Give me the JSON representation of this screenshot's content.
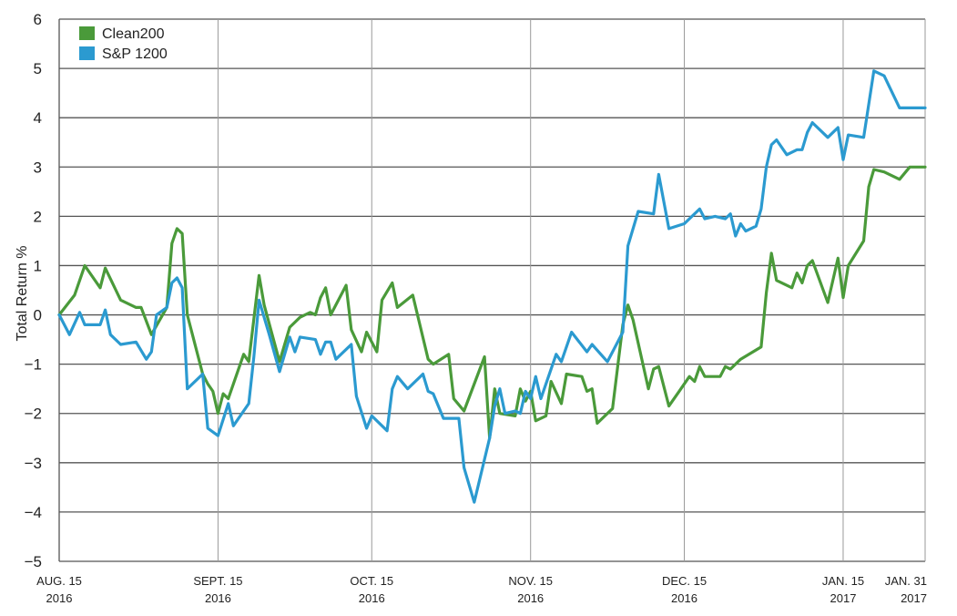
{
  "chart_data": {
    "type": "line",
    "title": "",
    "ylabel": "Total Return %",
    "xlabel": "",
    "ylim": [
      -5,
      6
    ],
    "yticks": [
      6,
      5,
      4,
      3,
      2,
      1,
      0,
      -1,
      -2,
      -3,
      -4,
      -5
    ],
    "xlim": [
      "2016-08-15",
      "2017-01-31"
    ],
    "xticks": [
      {
        "date": "2016-08-15",
        "line1": "AUG. 15",
        "line2": "2016"
      },
      {
        "date": "2016-09-15",
        "line1": "SEPT. 15",
        "line2": "2016"
      },
      {
        "date": "2016-10-15",
        "line1": "OCT. 15",
        "line2": "2016"
      },
      {
        "date": "2016-11-15",
        "line1": "NOV. 15",
        "line2": "2016"
      },
      {
        "date": "2016-12-15",
        "line1": "DEC. 15",
        "line2": "2016"
      },
      {
        "date": "2017-01-15",
        "line1": "JAN. 15",
        "line2": "2017"
      },
      {
        "date": "2017-01-31",
        "line1": "JAN. 31",
        "line2": "2017"
      }
    ],
    "grid": "horizontal and vertical",
    "legend_position": "top-left",
    "series": [
      {
        "name": "Clean200",
        "color": "#4a9a3a",
        "points": [
          [
            "2016-08-15",
            0
          ],
          [
            "2016-08-18",
            0.4
          ],
          [
            "2016-08-20",
            1
          ],
          [
            "2016-08-23",
            0.55
          ],
          [
            "2016-08-24",
            0.95
          ],
          [
            "2016-08-27",
            0.3
          ],
          [
            "2016-08-30",
            0.15
          ],
          [
            "2016-08-31",
            0.15
          ],
          [
            "2016-09-02",
            -0.4
          ],
          [
            "2016-09-05",
            0.15
          ],
          [
            "2016-09-06",
            1.45
          ],
          [
            "2016-09-07",
            1.75
          ],
          [
            "2016-09-08",
            1.65
          ],
          [
            "2016-09-09",
            0
          ],
          [
            "2016-09-12",
            -1.2
          ],
          [
            "2016-09-13",
            -1.4
          ],
          [
            "2016-09-14",
            -1.55
          ],
          [
            "2016-09-15",
            -2
          ],
          [
            "2016-09-16",
            -1.6
          ],
          [
            "2016-09-17",
            -1.7
          ],
          [
            "2016-09-20",
            -0.8
          ],
          [
            "2016-09-21",
            -0.95
          ],
          [
            "2016-09-23",
            0.8
          ],
          [
            "2016-09-24",
            0.2
          ],
          [
            "2016-09-27",
            -0.95
          ],
          [
            "2016-09-29",
            -0.25
          ],
          [
            "2016-10-01",
            -0.05
          ],
          [
            "2016-10-03",
            0.05
          ],
          [
            "2016-10-04",
            0
          ],
          [
            "2016-10-05",
            0.35
          ],
          [
            "2016-10-06",
            0.55
          ],
          [
            "2016-10-07",
            0
          ],
          [
            "2016-10-10",
            0.6
          ],
          [
            "2016-10-11",
            -0.3
          ],
          [
            "2016-10-13",
            -0.75
          ],
          [
            "2016-10-14",
            -0.35
          ],
          [
            "2016-10-16",
            -0.75
          ],
          [
            "2016-10-17",
            0.3
          ],
          [
            "2016-10-19",
            0.65
          ],
          [
            "2016-10-20",
            0.15
          ],
          [
            "2016-10-23",
            0.4
          ],
          [
            "2016-10-26",
            -0.9
          ],
          [
            "2016-10-27",
            -1
          ],
          [
            "2016-10-30",
            -0.8
          ],
          [
            "2016-10-31",
            -1.7
          ],
          [
            "2016-11-02",
            -1.95
          ],
          [
            "2016-11-06",
            -0.85
          ],
          [
            "2016-11-07",
            -2.5
          ],
          [
            "2016-11-08",
            -1.5
          ],
          [
            "2016-11-09",
            -2
          ],
          [
            "2016-11-12",
            -2.05
          ],
          [
            "2016-11-13",
            -1.5
          ],
          [
            "2016-11-14",
            -1.75
          ],
          [
            "2016-11-15",
            -1.55
          ],
          [
            "2016-11-16",
            -2.15
          ],
          [
            "2016-11-18",
            -2.05
          ],
          [
            "2016-11-19",
            -1.35
          ],
          [
            "2016-11-21",
            -1.8
          ],
          [
            "2016-11-22",
            -1.2
          ],
          [
            "2016-11-25",
            -1.25
          ],
          [
            "2016-11-26",
            -1.55
          ],
          [
            "2016-11-27",
            -1.5
          ],
          [
            "2016-11-28",
            -2.2
          ],
          [
            "2016-12-01",
            -1.9
          ],
          [
            "2016-12-03",
            -0.2
          ],
          [
            "2016-12-04",
            0.2
          ],
          [
            "2016-12-05",
            -0.1
          ],
          [
            "2016-12-08",
            -1.5
          ],
          [
            "2016-12-09",
            -1.1
          ],
          [
            "2016-12-10",
            -1.05
          ],
          [
            "2016-12-12",
            -1.85
          ],
          [
            "2016-12-14",
            -1.55
          ],
          [
            "2016-12-16",
            -1.25
          ],
          [
            "2016-12-17",
            -1.35
          ],
          [
            "2016-12-18",
            -1.05
          ],
          [
            "2016-12-19",
            -1.25
          ],
          [
            "2016-12-22",
            -1.25
          ],
          [
            "2016-12-23",
            -1.05
          ],
          [
            "2016-12-24",
            -1.1
          ],
          [
            "2016-12-26",
            -0.9
          ],
          [
            "2016-12-30",
            -0.65
          ],
          [
            "2016-12-31",
            0.45
          ],
          [
            "2017-01-01",
            1.25
          ],
          [
            "2017-01-02",
            0.7
          ],
          [
            "2017-01-05",
            0.55
          ],
          [
            "2017-01-06",
            0.85
          ],
          [
            "2017-01-07",
            0.65
          ],
          [
            "2017-01-08",
            1
          ],
          [
            "2017-01-09",
            1.1
          ],
          [
            "2017-01-12",
            0.25
          ],
          [
            "2017-01-14",
            1.15
          ],
          [
            "2017-01-15",
            0.35
          ],
          [
            "2017-01-16",
            1
          ],
          [
            "2017-01-19",
            1.5
          ],
          [
            "2017-01-20",
            2.6
          ],
          [
            "2017-01-21",
            2.95
          ],
          [
            "2017-01-23",
            2.9
          ],
          [
            "2017-01-26",
            2.75
          ],
          [
            "2017-01-28",
            3
          ],
          [
            "2017-01-31",
            3
          ]
        ]
      },
      {
        "name": "S&P 1200",
        "color": "#2b9ad0",
        "points": [
          [
            "2016-08-15",
            0
          ],
          [
            "2016-08-17",
            -0.4
          ],
          [
            "2016-08-19",
            0.05
          ],
          [
            "2016-08-20",
            -0.2
          ],
          [
            "2016-08-23",
            -0.2
          ],
          [
            "2016-08-24",
            0.1
          ],
          [
            "2016-08-25",
            -0.4
          ],
          [
            "2016-08-27",
            -0.6
          ],
          [
            "2016-08-30",
            -0.55
          ],
          [
            "2016-09-01",
            -0.9
          ],
          [
            "2016-09-02",
            -0.75
          ],
          [
            "2016-09-03",
            0
          ],
          [
            "2016-09-05",
            0.15
          ],
          [
            "2016-09-06",
            0.65
          ],
          [
            "2016-09-07",
            0.75
          ],
          [
            "2016-09-08",
            0.55
          ],
          [
            "2016-09-09",
            -1.5
          ],
          [
            "2016-09-12",
            -1.2
          ],
          [
            "2016-09-13",
            -2.3
          ],
          [
            "2016-09-15",
            -2.45
          ],
          [
            "2016-09-17",
            -1.8
          ],
          [
            "2016-09-18",
            -2.25
          ],
          [
            "2016-09-21",
            -1.8
          ],
          [
            "2016-09-22",
            -0.85
          ],
          [
            "2016-09-23",
            0.3
          ],
          [
            "2016-09-25",
            -0.4
          ],
          [
            "2016-09-27",
            -1.15
          ],
          [
            "2016-09-29",
            -0.45
          ],
          [
            "2016-09-30",
            -0.75
          ],
          [
            "2016-10-01",
            -0.45
          ],
          [
            "2016-10-04",
            -0.5
          ],
          [
            "2016-10-05",
            -0.8
          ],
          [
            "2016-10-06",
            -0.55
          ],
          [
            "2016-10-07",
            -0.55
          ],
          [
            "2016-10-08",
            -0.9
          ],
          [
            "2016-10-11",
            -0.6
          ],
          [
            "2016-10-12",
            -1.65
          ],
          [
            "2016-10-14",
            -2.3
          ],
          [
            "2016-10-15",
            -2.05
          ],
          [
            "2016-10-18",
            -2.35
          ],
          [
            "2016-10-19",
            -1.5
          ],
          [
            "2016-10-20",
            -1.25
          ],
          [
            "2016-10-22",
            -1.5
          ],
          [
            "2016-10-25",
            -1.2
          ],
          [
            "2016-10-26",
            -1.55
          ],
          [
            "2016-10-27",
            -1.6
          ],
          [
            "2016-10-29",
            -2.1
          ],
          [
            "2016-11-01",
            -2.1
          ],
          [
            "2016-11-02",
            -3.1
          ],
          [
            "2016-11-04",
            -3.8
          ],
          [
            "2016-11-07",
            -2.5
          ],
          [
            "2016-11-08",
            -1.85
          ],
          [
            "2016-11-09",
            -1.5
          ],
          [
            "2016-11-10",
            -2
          ],
          [
            "2016-11-12",
            -1.95
          ],
          [
            "2016-11-13",
            -2
          ],
          [
            "2016-11-14",
            -1.55
          ],
          [
            "2016-11-15",
            -1.7
          ],
          [
            "2016-11-16",
            -1.25
          ],
          [
            "2016-11-17",
            -1.7
          ],
          [
            "2016-11-20",
            -0.8
          ],
          [
            "2016-11-21",
            -0.95
          ],
          [
            "2016-11-23",
            -0.35
          ],
          [
            "2016-11-26",
            -0.75
          ],
          [
            "2016-11-27",
            -0.6
          ],
          [
            "2016-11-30",
            -0.95
          ],
          [
            "2016-12-03",
            -0.35
          ],
          [
            "2016-12-04",
            1.4
          ],
          [
            "2016-12-06",
            2.1
          ],
          [
            "2016-12-09",
            2.05
          ],
          [
            "2016-12-10",
            2.85
          ],
          [
            "2016-12-12",
            1.75
          ],
          [
            "2016-12-15",
            1.85
          ],
          [
            "2016-12-16",
            1.95
          ],
          [
            "2016-12-18",
            2.15
          ],
          [
            "2016-12-19",
            1.95
          ],
          [
            "2016-12-21",
            2
          ],
          [
            "2016-12-23",
            1.95
          ],
          [
            "2016-12-24",
            2.05
          ],
          [
            "2016-12-25",
            1.6
          ],
          [
            "2016-12-26",
            1.85
          ],
          [
            "2016-12-27",
            1.7
          ],
          [
            "2016-12-29",
            1.8
          ],
          [
            "2016-12-30",
            2.15
          ],
          [
            "2016-12-31",
            3
          ],
          [
            "2017-01-01",
            3.45
          ],
          [
            "2017-01-02",
            3.55
          ],
          [
            "2017-01-04",
            3.25
          ],
          [
            "2017-01-06",
            3.35
          ],
          [
            "2017-01-07",
            3.35
          ],
          [
            "2017-01-08",
            3.7
          ],
          [
            "2017-01-09",
            3.9
          ],
          [
            "2017-01-12",
            3.6
          ],
          [
            "2017-01-14",
            3.8
          ],
          [
            "2017-01-15",
            3.15
          ],
          [
            "2017-01-16",
            3.65
          ],
          [
            "2017-01-19",
            3.6
          ],
          [
            "2017-01-21",
            4.95
          ],
          [
            "2017-01-23",
            4.85
          ],
          [
            "2017-01-26",
            4.2
          ],
          [
            "2017-01-31",
            4.2
          ]
        ]
      }
    ]
  }
}
